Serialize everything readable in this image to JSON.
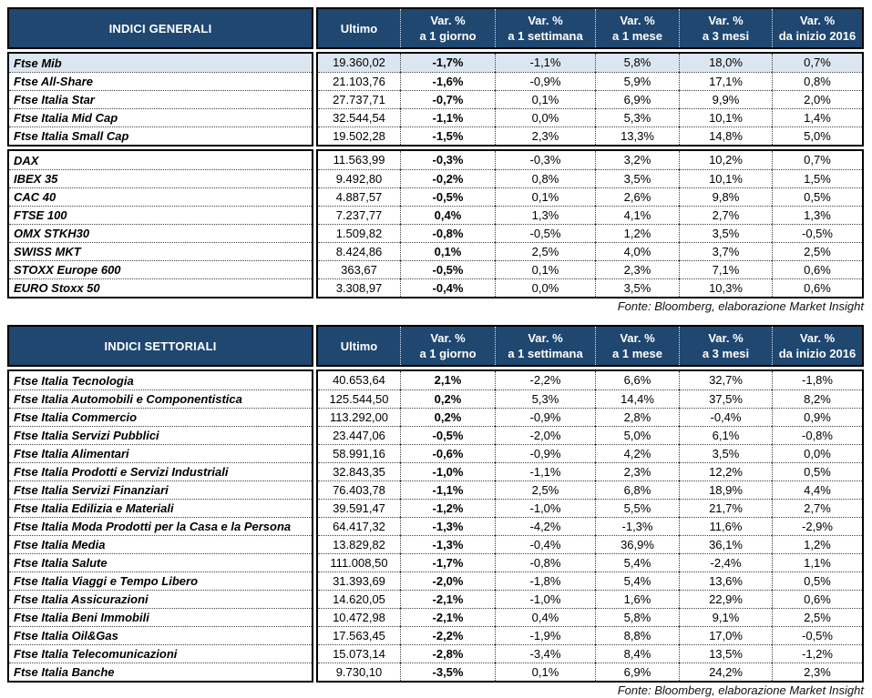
{
  "colors": {
    "header_bg": "#1F4770",
    "header_text": "#FFFFFF",
    "highlight_row_bg": "#DCE6F1",
    "border": "#000000"
  },
  "tables": [
    {
      "title": "INDICI GENERALI",
      "columns": [
        {
          "label": "Ultimo",
          "sub": ""
        },
        {
          "label": "Var. %",
          "sub": "a 1 giorno"
        },
        {
          "label": "Var. %",
          "sub": "a 1 settimana"
        },
        {
          "label": "Var. %",
          "sub": "a 1 mese"
        },
        {
          "label": "Var. %",
          "sub": "a 3 mesi"
        },
        {
          "label": "Var. %",
          "sub": "da inizio 2016"
        }
      ],
      "groups": [
        {
          "rows": [
            {
              "name": "Ftse Mib",
              "highlight": true,
              "values": [
                "19.360,02",
                "-1,7%",
                "-1,1%",
                "5,8%",
                "18,0%",
                "0,7%"
              ]
            },
            {
              "name": "Ftse All-Share",
              "values": [
                "21.103,76",
                "-1,6%",
                "-0,9%",
                "5,9%",
                "17,1%",
                "0,8%"
              ]
            },
            {
              "name": "Ftse Italia Star",
              "values": [
                "27.737,71",
                "-0,7%",
                "0,1%",
                "6,9%",
                "9,9%",
                "2,0%"
              ]
            },
            {
              "name": "Ftse Italia Mid Cap",
              "values": [
                "32.544,54",
                "-1,1%",
                "0,0%",
                "5,3%",
                "10,1%",
                "1,4%"
              ]
            },
            {
              "name": "Ftse Italia Small Cap",
              "values": [
                "19.502,28",
                "-1,5%",
                "2,3%",
                "13,3%",
                "14,8%",
                "5,0%"
              ]
            }
          ]
        },
        {
          "rows": [
            {
              "name": "DAX",
              "values": [
                "11.563,99",
                "-0,3%",
                "-0,3%",
                "3,2%",
                "10,2%",
                "0,7%"
              ]
            },
            {
              "name": "IBEX 35",
              "values": [
                "9.492,80",
                "-0,2%",
                "0,8%",
                "3,5%",
                "10,1%",
                "1,5%"
              ]
            },
            {
              "name": "CAC 40",
              "values": [
                "4.887,57",
                "-0,5%",
                "0,1%",
                "2,6%",
                "9,8%",
                "0,5%"
              ]
            },
            {
              "name": "FTSE 100",
              "values": [
                "7.237,77",
                "0,4%",
                "1,3%",
                "4,1%",
                "2,7%",
                "1,3%"
              ]
            },
            {
              "name": "OMX STKH30",
              "values": [
                "1.509,82",
                "-0,8%",
                "-0,5%",
                "1,2%",
                "3,5%",
                "-0,5%"
              ]
            },
            {
              "name": "SWISS MKT",
              "values": [
                "8.424,86",
                "0,1%",
                "2,5%",
                "4,0%",
                "3,7%",
                "2,5%"
              ]
            },
            {
              "name": "STOXX Europe 600",
              "values": [
                "363,67",
                "-0,5%",
                "0,1%",
                "2,3%",
                "7,1%",
                "0,6%"
              ]
            },
            {
              "name": "EURO Stoxx 50",
              "values": [
                "3.308,97",
                "-0,4%",
                "0,0%",
                "3,5%",
                "10,3%",
                "0,6%"
              ]
            }
          ]
        }
      ],
      "source_note": "Fonte: Bloomberg, elaborazione Market Insight"
    },
    {
      "title": "INDICI SETTORIALI",
      "columns": [
        {
          "label": "Ultimo",
          "sub": ""
        },
        {
          "label": "Var. %",
          "sub": "a 1 giorno"
        },
        {
          "label": "Var. %",
          "sub": "a 1 settimana"
        },
        {
          "label": "Var. %",
          "sub": "a 1 mese"
        },
        {
          "label": "Var. %",
          "sub": "a 3 mesi"
        },
        {
          "label": "Var. %",
          "sub": "da inizio 2016"
        }
      ],
      "groups": [
        {
          "rows": [
            {
              "name": "Ftse Italia Tecnologia",
              "values": [
                "40.653,64",
                "2,1%",
                "-2,2%",
                "6,6%",
                "32,7%",
                "-1,8%"
              ]
            },
            {
              "name": "Ftse Italia Automobili e Componentistica",
              "values": [
                "125.544,50",
                "0,2%",
                "5,3%",
                "14,4%",
                "37,5%",
                "8,2%"
              ]
            },
            {
              "name": "Ftse Italia Commercio",
              "values": [
                "113.292,00",
                "0,2%",
                "-0,9%",
                "2,8%",
                "-0,4%",
                "0,9%"
              ]
            },
            {
              "name": "Ftse Italia Servizi Pubblici",
              "values": [
                "23.447,06",
                "-0,5%",
                "-2,0%",
                "5,0%",
                "6,1%",
                "-0,8%"
              ]
            },
            {
              "name": "Ftse Italia Alimentari",
              "values": [
                "58.991,16",
                "-0,6%",
                "-0,9%",
                "4,2%",
                "3,5%",
                "0,0%"
              ]
            },
            {
              "name": "Ftse Italia Prodotti e Servizi Industriali",
              "values": [
                "32.843,35",
                "-1,0%",
                "-1,1%",
                "2,3%",
                "12,2%",
                "0,5%"
              ]
            },
            {
              "name": "Ftse Italia Servizi Finanziari",
              "values": [
                "76.403,78",
                "-1,1%",
                "2,5%",
                "6,8%",
                "18,9%",
                "4,4%"
              ]
            },
            {
              "name": "Ftse Italia Edilizia e Materiali",
              "values": [
                "39.591,47",
                "-1,2%",
                "-1,0%",
                "5,5%",
                "21,7%",
                "2,7%"
              ]
            },
            {
              "name": "Ftse Italia Moda Prodotti per la Casa e la Persona",
              "values": [
                "64.417,32",
                "-1,3%",
                "-4,2%",
                "-1,3%",
                "11,6%",
                "-2,9%"
              ]
            },
            {
              "name": "Ftse Italia Media",
              "values": [
                "13.829,82",
                "-1,3%",
                "-0,4%",
                "36,9%",
                "36,1%",
                "1,2%"
              ]
            },
            {
              "name": "Ftse Italia Salute",
              "values": [
                "111.008,50",
                "-1,7%",
                "-0,8%",
                "5,4%",
                "-2,4%",
                "1,1%"
              ]
            },
            {
              "name": "Ftse Italia Viaggi e Tempo Libero",
              "values": [
                "31.393,69",
                "-2,0%",
                "-1,8%",
                "5,4%",
                "13,6%",
                "0,5%"
              ]
            },
            {
              "name": "Ftse Italia Assicurazioni",
              "values": [
                "14.620,05",
                "-2,1%",
                "-1,0%",
                "1,6%",
                "22,9%",
                "0,6%"
              ]
            },
            {
              "name": "Ftse Italia Beni Immobili",
              "values": [
                "10.472,98",
                "-2,1%",
                "0,4%",
                "5,8%",
                "9,1%",
                "2,5%"
              ]
            },
            {
              "name": "Ftse Italia Oil&Gas",
              "values": [
                "17.563,45",
                "-2,2%",
                "-1,9%",
                "8,8%",
                "17,0%",
                "-0,5%"
              ]
            },
            {
              "name": "Ftse Italia Telecomunicazioni",
              "values": [
                "15.073,14",
                "-2,8%",
                "-3,4%",
                "8,4%",
                "13,5%",
                "-1,2%"
              ]
            },
            {
              "name": "Ftse Italia Banche",
              "values": [
                "9.730,10",
                "-3,5%",
                "0,1%",
                "6,9%",
                "24,2%",
                "2,3%"
              ]
            }
          ]
        }
      ],
      "source_note": "Fonte: Bloomberg, elaborazione Market Insight"
    }
  ]
}
